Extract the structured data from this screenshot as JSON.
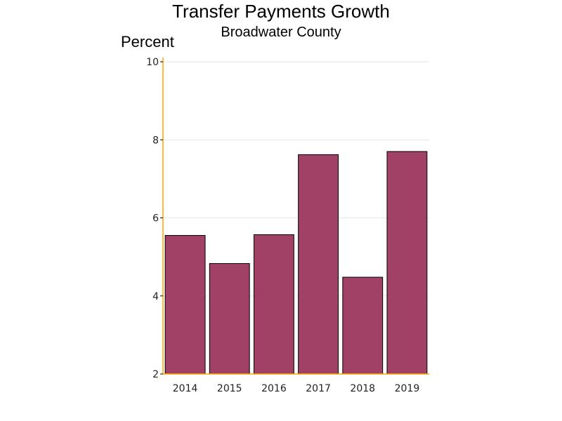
{
  "chart_data": {
    "type": "bar",
    "title": "Transfer Payments Growth",
    "subtitle": "Broadwater County",
    "ylabel": "Percent",
    "xlabel": "",
    "categories": [
      "2014",
      "2015",
      "2016",
      "2017",
      "2018",
      "2019"
    ],
    "values": [
      5.55,
      4.83,
      5.57,
      7.62,
      4.48,
      7.7
    ],
    "ylim": [
      2,
      10
    ],
    "yticks": [
      "2",
      "4",
      "6",
      "8",
      "10"
    ],
    "grid": true,
    "legend": "none"
  },
  "colors": {
    "bar_fill": "#a04165",
    "bar_stroke": "#000000",
    "axis": "#ffa500",
    "grid": "#e6e6e6",
    "background": "#ffffff"
  }
}
